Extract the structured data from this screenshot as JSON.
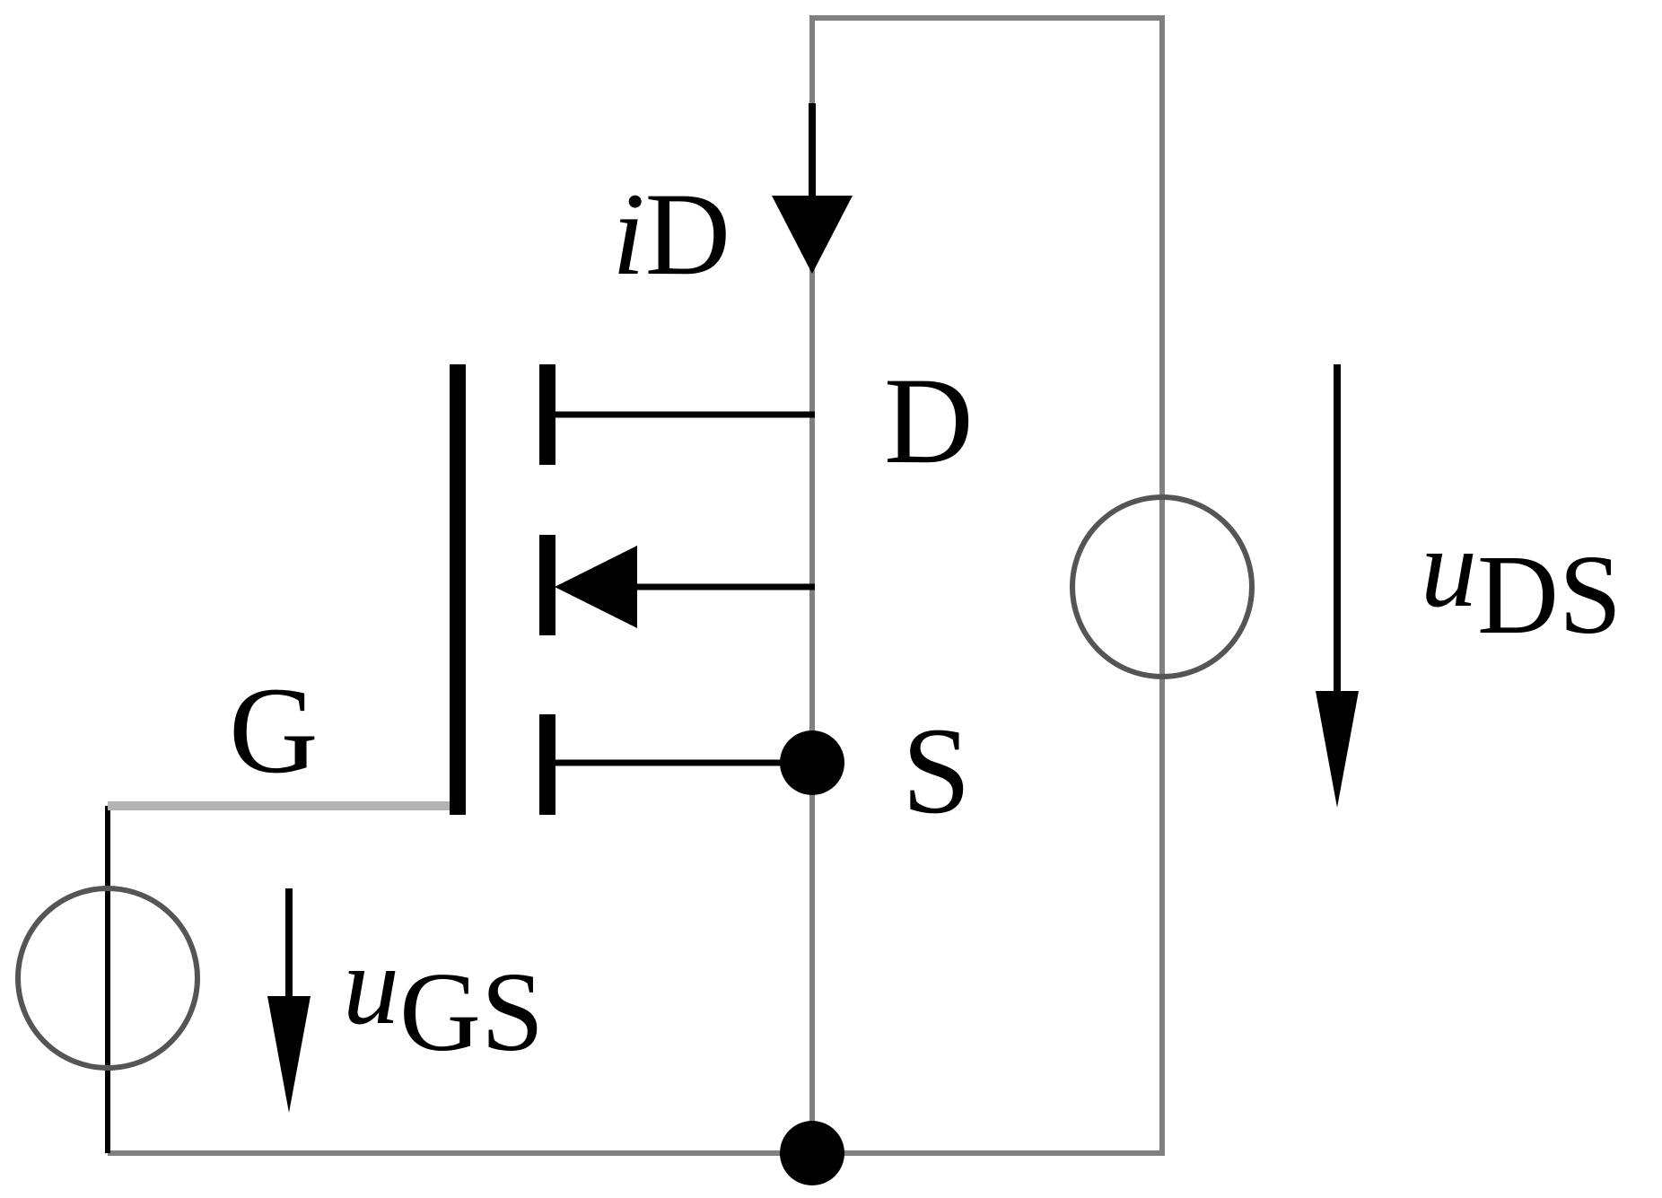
{
  "labels": {
    "gate": "G",
    "drain": "D",
    "source": "S",
    "drain_current": {
      "main": "i",
      "sub": "D"
    },
    "gate_source_voltage": {
      "main": "u",
      "sub": "GS"
    },
    "drain_source_voltage": {
      "main": "u",
      "sub": "DS"
    }
  },
  "colors": {
    "wire": "#808080",
    "gate_wire": "#b3b3b3",
    "component": "#000000",
    "background": "#ffffff"
  }
}
